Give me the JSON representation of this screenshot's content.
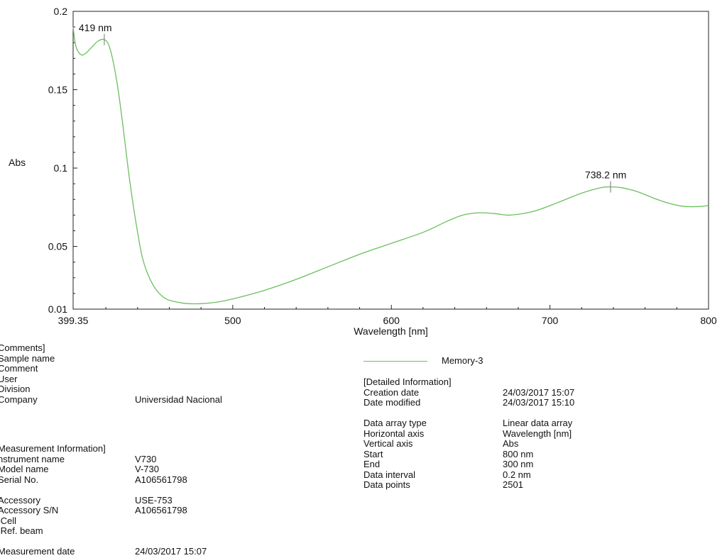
{
  "chart_data": {
    "type": "line",
    "xlabel": "Wavelength [nm]",
    "ylabel": "Abs",
    "xlim": [
      399.35,
      800
    ],
    "ylim": [
      0.01,
      0.2
    ],
    "x_ticks": [
      "399.35",
      "500",
      "600",
      "700",
      "800"
    ],
    "y_ticks": [
      "0.01",
      "0.05",
      "0.1",
      "0.15",
      "0.2"
    ],
    "grid": false,
    "series": [
      {
        "name": "Memory-3",
        "color": "#6bbf5e",
        "points": [
          [
            399.35,
            0.19
          ],
          [
            401,
            0.178
          ],
          [
            404,
            0.1725
          ],
          [
            407,
            0.173
          ],
          [
            411,
            0.177
          ],
          [
            415,
            0.181
          ],
          [
            419,
            0.182
          ],
          [
            422,
            0.178
          ],
          [
            425,
            0.166
          ],
          [
            428,
            0.148
          ],
          [
            431,
            0.125
          ],
          [
            434,
            0.1
          ],
          [
            437,
            0.078
          ],
          [
            440,
            0.059
          ],
          [
            443,
            0.043
          ],
          [
            447,
            0.031
          ],
          [
            452,
            0.022
          ],
          [
            458,
            0.0165
          ],
          [
            465,
            0.0145
          ],
          [
            472,
            0.0135
          ],
          [
            480,
            0.0135
          ],
          [
            490,
            0.0145
          ],
          [
            500,
            0.0165
          ],
          [
            520,
            0.022
          ],
          [
            540,
            0.029
          ],
          [
            560,
            0.037
          ],
          [
            580,
            0.045
          ],
          [
            600,
            0.052
          ],
          [
            620,
            0.059
          ],
          [
            635,
            0.066
          ],
          [
            645,
            0.07
          ],
          [
            655,
            0.0715
          ],
          [
            665,
            0.071
          ],
          [
            675,
            0.07
          ],
          [
            690,
            0.0725
          ],
          [
            705,
            0.078
          ],
          [
            720,
            0.084
          ],
          [
            732,
            0.0875
          ],
          [
            738.2,
            0.088
          ],
          [
            745,
            0.0875
          ],
          [
            755,
            0.085
          ],
          [
            765,
            0.081
          ],
          [
            775,
            0.0775
          ],
          [
            785,
            0.0755
          ],
          [
            795,
            0.0755
          ],
          [
            800,
            0.0762
          ]
        ]
      }
    ],
    "annotations": [
      {
        "label": "419 nm",
        "x": 419,
        "y": 0.182
      },
      {
        "label": "738.2 nm",
        "x": 738.2,
        "y": 0.088
      }
    ]
  },
  "legend": {
    "label": "Memory-3"
  },
  "comments": {
    "header": "Comments]",
    "rows": [
      {
        "key": "Sample name",
        "value": ""
      },
      {
        "key": "Comment",
        "value": ""
      },
      {
        "key": "User",
        "value": ""
      },
      {
        "key": "Division",
        "value": ""
      },
      {
        "key": "Company",
        "value": "Universidad Nacional"
      }
    ]
  },
  "measurement": {
    "header": "Measurement Information]",
    "rows": [
      {
        "key": "nstrument name",
        "value": "V730"
      },
      {
        "key": "Model name",
        "value": "V-730"
      },
      {
        "key": "Serial No.",
        "value": "A106561798"
      },
      {
        "key": "",
        "value": ""
      },
      {
        "key": "Accessory",
        "value": "USE-753"
      },
      {
        "key": "Accessory S/N",
        "value": "A106561798"
      },
      {
        "key": " Cell",
        "value": ""
      },
      {
        "key": " Ref. beam",
        "value": ""
      },
      {
        "key": "",
        "value": ""
      },
      {
        "key": "Measurement date",
        "value": "24/03/2017 15:07"
      }
    ]
  },
  "detailed": {
    "header": "[Detailed Information]",
    "rows": [
      {
        "key": "Creation date",
        "value": "24/03/2017 15:07"
      },
      {
        "key": "Date modified",
        "value": "24/03/2017 15:10"
      },
      {
        "key": "",
        "value": ""
      },
      {
        "key": "Data array type",
        "value": "Linear data array"
      },
      {
        "key": "Horizontal axis",
        "value": "Wavelength [nm]"
      },
      {
        "key": "Vertical axis",
        "value": "Abs"
      },
      {
        "key": "Start",
        "value": "800 nm"
      },
      {
        "key": "End",
        "value": "300 nm"
      },
      {
        "key": "Data interval",
        "value": "0.2 nm"
      },
      {
        "key": "Data points",
        "value": "2501"
      }
    ]
  }
}
